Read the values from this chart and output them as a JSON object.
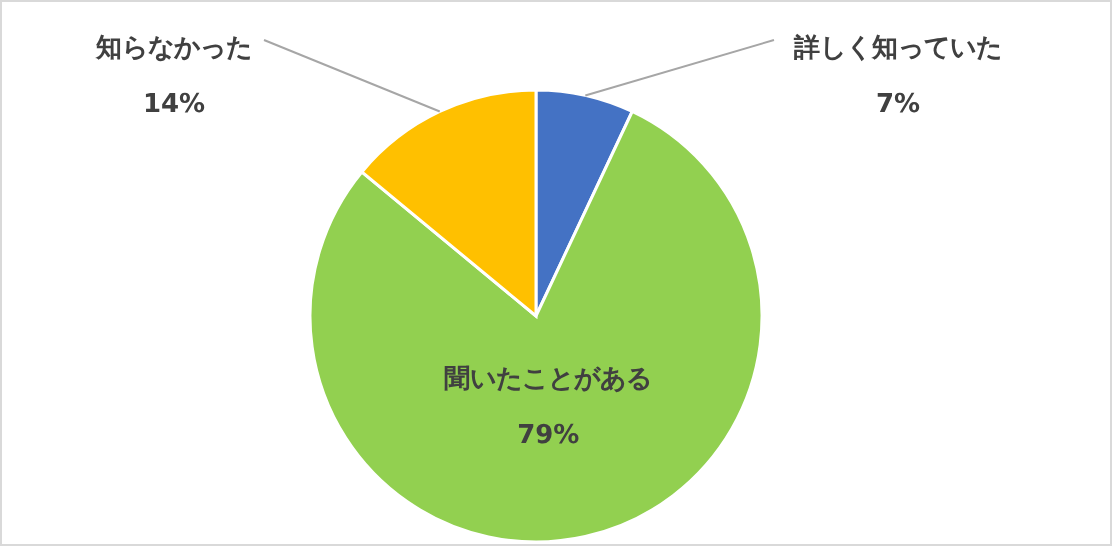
{
  "chart_data": {
    "type": "pie",
    "categories": [
      "詳しく知っていた",
      "聞いたことがある",
      "知らなかった"
    ],
    "values": [
      7,
      79,
      14
    ],
    "colors": [
      "#4472c4",
      "#92d050",
      "#ffc000"
    ],
    "value_labels": [
      "7%",
      "79%",
      "14%"
    ]
  }
}
